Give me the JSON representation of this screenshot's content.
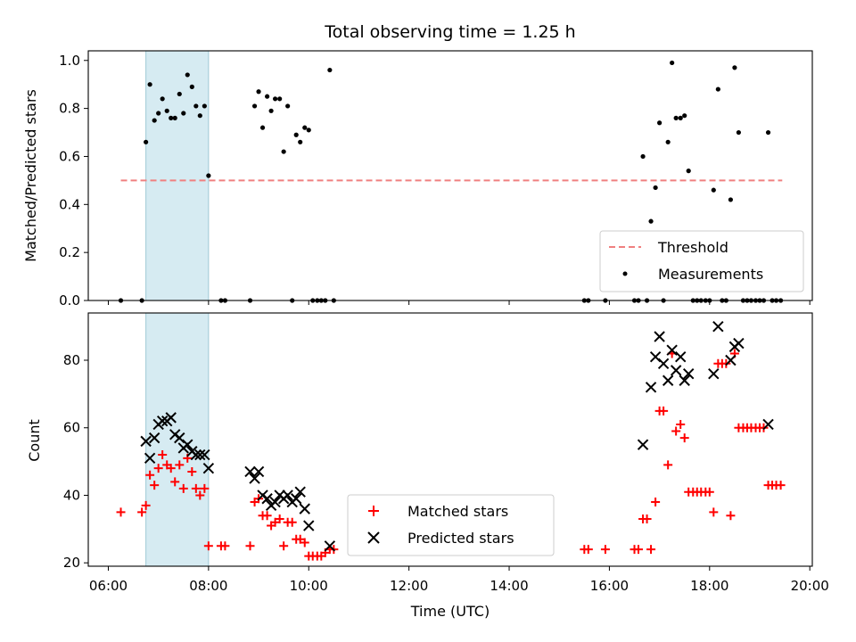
{
  "chart_data": {
    "title": "Total observing time = 1.25 h",
    "xlabel": "Time (UTC)",
    "x_ticks": [
      "06:00",
      "08:00",
      "10:00",
      "12:00",
      "14:00",
      "16:00",
      "18:00",
      "20:00"
    ],
    "xlim_hours": [
      5.6,
      20.05
    ],
    "shaded_interval_hours": [
      6.75,
      8.0
    ],
    "shaded_color": "#add8e6",
    "panels": [
      {
        "type": "scatter",
        "ylabel": "Matched/Predicted stars",
        "ylim": [
          0,
          1.04
        ],
        "y_ticks": [
          "0.0",
          "0.2",
          "0.4",
          "0.6",
          "0.8",
          "1.0"
        ],
        "y_tick_values": [
          0.0,
          0.2,
          0.4,
          0.6,
          0.8,
          1.0
        ],
        "legend_position": "lower right",
        "series": [
          {
            "name": "Threshold",
            "style": "dashed-line",
            "color": "#f08080",
            "points": [
              [
                6.25,
                0.5
              ],
              [
                19.45,
                0.5
              ]
            ]
          },
          {
            "name": "Measurements",
            "style": "dot",
            "color": "#000000",
            "points": [
              [
                6.25,
                0.0
              ],
              [
                6.67,
                0.0
              ],
              [
                6.75,
                0.66
              ],
              [
                6.83,
                0.9
              ],
              [
                6.92,
                0.75
              ],
              [
                7.0,
                0.78
              ],
              [
                7.08,
                0.84
              ],
              [
                7.17,
                0.79
              ],
              [
                7.25,
                0.76
              ],
              [
                7.33,
                0.76
              ],
              [
                7.42,
                0.86
              ],
              [
                7.5,
                0.78
              ],
              [
                7.58,
                0.94
              ],
              [
                7.67,
                0.89
              ],
              [
                7.75,
                0.81
              ],
              [
                7.83,
                0.77
              ],
              [
                7.92,
                0.81
              ],
              [
                8.0,
                0.52
              ],
              [
                8.25,
                0.0
              ],
              [
                8.33,
                0.0
              ],
              [
                8.83,
                0.0
              ],
              [
                8.92,
                0.81
              ],
              [
                9.0,
                0.87
              ],
              [
                9.08,
                0.72
              ],
              [
                9.17,
                0.85
              ],
              [
                9.25,
                0.79
              ],
              [
                9.33,
                0.84
              ],
              [
                9.42,
                0.84
              ],
              [
                9.5,
                0.62
              ],
              [
                9.58,
                0.81
              ],
              [
                9.67,
                0.0
              ],
              [
                9.75,
                0.69
              ],
              [
                9.83,
                0.66
              ],
              [
                9.92,
                0.72
              ],
              [
                10.0,
                0.71
              ],
              [
                10.08,
                0.0
              ],
              [
                10.17,
                0.0
              ],
              [
                10.25,
                0.0
              ],
              [
                10.33,
                0.0
              ],
              [
                10.42,
                0.96
              ],
              [
                10.5,
                0.0
              ],
              [
                15.5,
                0.0
              ],
              [
                15.58,
                0.0
              ],
              [
                15.92,
                0.0
              ],
              [
                16.5,
                0.0
              ],
              [
                16.58,
                0.0
              ],
              [
                16.67,
                0.6
              ],
              [
                16.75,
                0.0
              ],
              [
                16.83,
                0.33
              ],
              [
                16.92,
                0.47
              ],
              [
                17.0,
                0.74
              ],
              [
                17.08,
                0.0
              ],
              [
                17.17,
                0.66
              ],
              [
                17.25,
                0.99
              ],
              [
                17.33,
                0.76
              ],
              [
                17.42,
                0.76
              ],
              [
                17.5,
                0.77
              ],
              [
                17.58,
                0.54
              ],
              [
                17.67,
                0.0
              ],
              [
                17.75,
                0.0
              ],
              [
                17.83,
                0.0
              ],
              [
                17.92,
                0.0
              ],
              [
                18.0,
                0.0
              ],
              [
                18.08,
                0.46
              ],
              [
                18.17,
                0.88
              ],
              [
                18.25,
                0.0
              ],
              [
                18.33,
                0.0
              ],
              [
                18.42,
                0.42
              ],
              [
                18.5,
                0.97
              ],
              [
                18.58,
                0.7
              ],
              [
                18.67,
                0.0
              ],
              [
                18.75,
                0.0
              ],
              [
                18.83,
                0.0
              ],
              [
                18.92,
                0.0
              ],
              [
                19.0,
                0.0
              ],
              [
                19.08,
                0.0
              ],
              [
                19.17,
                0.7
              ],
              [
                19.25,
                0.0
              ],
              [
                19.33,
                0.0
              ],
              [
                19.42,
                0.0
              ]
            ]
          }
        ]
      },
      {
        "type": "scatter",
        "ylabel": "Count",
        "ylim": [
          19,
          94
        ],
        "y_ticks": [
          "20",
          "40",
          "60",
          "80"
        ],
        "y_tick_values": [
          20,
          40,
          60,
          80
        ],
        "legend_position": "lower center",
        "series": [
          {
            "name": "Matched stars",
            "marker": "plus",
            "color": "#ff0000",
            "points": [
              [
                6.25,
                35
              ],
              [
                6.67,
                35
              ],
              [
                6.75,
                37
              ],
              [
                6.83,
                46
              ],
              [
                6.92,
                43
              ],
              [
                7.0,
                48
              ],
              [
                7.08,
                52
              ],
              [
                7.17,
                49
              ],
              [
                7.25,
                48
              ],
              [
                7.33,
                44
              ],
              [
                7.42,
                49
              ],
              [
                7.5,
                42
              ],
              [
                7.58,
                51
              ],
              [
                7.67,
                47
              ],
              [
                7.75,
                42
              ],
              [
                7.83,
                40
              ],
              [
                7.92,
                42
              ],
              [
                8.0,
                25
              ],
              [
                8.25,
                25
              ],
              [
                8.33,
                25
              ],
              [
                8.83,
                25
              ],
              [
                8.92,
                38
              ],
              [
                9.0,
                39
              ],
              [
                9.08,
                34
              ],
              [
                9.17,
                34
              ],
              [
                9.25,
                31
              ],
              [
                9.33,
                32
              ],
              [
                9.42,
                33
              ],
              [
                9.5,
                25
              ],
              [
                9.58,
                32
              ],
              [
                9.67,
                32
              ],
              [
                9.75,
                27
              ],
              [
                9.83,
                27
              ],
              [
                9.92,
                26
              ],
              [
                10.0,
                22
              ],
              [
                10.08,
                22
              ],
              [
                10.17,
                22
              ],
              [
                10.25,
                22
              ],
              [
                10.33,
                23
              ],
              [
                10.42,
                24
              ],
              [
                10.5,
                24
              ],
              [
                15.5,
                24
              ],
              [
                15.58,
                24
              ],
              [
                15.92,
                24
              ],
              [
                16.5,
                24
              ],
              [
                16.58,
                24
              ],
              [
                16.67,
                33
              ],
              [
                16.75,
                33
              ],
              [
                16.83,
                24
              ],
              [
                16.92,
                38
              ],
              [
                17.0,
                65
              ],
              [
                17.08,
                65
              ],
              [
                17.17,
                49
              ],
              [
                17.25,
                82
              ],
              [
                17.33,
                59
              ],
              [
                17.42,
                61
              ],
              [
                17.5,
                57
              ],
              [
                17.58,
                41
              ],
              [
                17.67,
                41
              ],
              [
                17.75,
                41
              ],
              [
                17.83,
                41
              ],
              [
                17.92,
                41
              ],
              [
                18.0,
                41
              ],
              [
                18.08,
                35
              ],
              [
                18.17,
                79
              ],
              [
                18.25,
                79
              ],
              [
                18.33,
                79
              ],
              [
                18.42,
                34
              ],
              [
                18.5,
                82
              ],
              [
                18.58,
                60
              ],
              [
                18.67,
                60
              ],
              [
                18.75,
                60
              ],
              [
                18.83,
                60
              ],
              [
                18.92,
                60
              ],
              [
                19.0,
                60
              ],
              [
                19.08,
                60
              ],
              [
                19.17,
                43
              ],
              [
                19.25,
                43
              ],
              [
                19.33,
                43
              ],
              [
                19.42,
                43
              ]
            ]
          },
          {
            "name": "Predicted stars",
            "marker": "x",
            "color": "#000000",
            "points": [
              [
                6.75,
                56
              ],
              [
                6.83,
                51
              ],
              [
                6.92,
                57
              ],
              [
                7.0,
                61
              ],
              [
                7.08,
                62
              ],
              [
                7.17,
                62
              ],
              [
                7.25,
                63
              ],
              [
                7.33,
                58
              ],
              [
                7.42,
                57
              ],
              [
                7.5,
                54
              ],
              [
                7.58,
                55
              ],
              [
                7.67,
                53
              ],
              [
                7.75,
                52
              ],
              [
                7.83,
                52
              ],
              [
                7.92,
                52
              ],
              [
                8.0,
                48
              ],
              [
                8.83,
                47
              ],
              [
                8.92,
                45
              ],
              [
                9.0,
                47
              ],
              [
                9.08,
                40
              ],
              [
                9.17,
                39
              ],
              [
                9.25,
                37
              ],
              [
                9.33,
                38
              ],
              [
                9.42,
                40
              ],
              [
                9.5,
                39
              ],
              [
                9.58,
                40
              ],
              [
                9.67,
                38
              ],
              [
                9.75,
                39
              ],
              [
                9.83,
                41
              ],
              [
                9.92,
                36
              ],
              [
                10.0,
                31
              ],
              [
                10.42,
                25
              ],
              [
                16.67,
                55
              ],
              [
                16.83,
                72
              ],
              [
                16.92,
                81
              ],
              [
                17.0,
                87
              ],
              [
                17.08,
                79
              ],
              [
                17.17,
                74
              ],
              [
                17.25,
                83
              ],
              [
                17.33,
                77
              ],
              [
                17.42,
                81
              ],
              [
                17.5,
                74
              ],
              [
                17.58,
                76
              ],
              [
                18.08,
                76
              ],
              [
                18.17,
                90
              ],
              [
                18.42,
                80
              ],
              [
                18.5,
                84
              ],
              [
                18.58,
                85
              ],
              [
                19.17,
                61
              ]
            ]
          }
        ]
      }
    ]
  }
}
